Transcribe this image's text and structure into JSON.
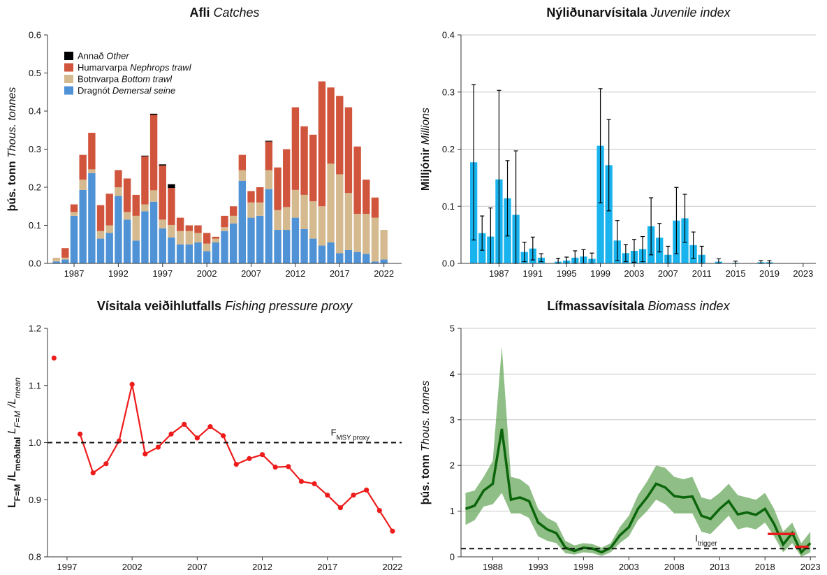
{
  "chart_data": [
    {
      "type": "stacked_bar",
      "title": [
        "Afli",
        "Catches"
      ],
      "ylabel": [
        "þús. tonn",
        "Thous. tonnes"
      ],
      "x": [
        1985,
        1986,
        1987,
        1988,
        1989,
        1990,
        1991,
        1992,
        1993,
        1994,
        1995,
        1996,
        1997,
        1998,
        1999,
        2000,
        2001,
        2002,
        2003,
        2004,
        2005,
        2006,
        2007,
        2008,
        2009,
        2010,
        2011,
        2012,
        2013,
        2014,
        2015,
        2016,
        2017,
        2018,
        2019,
        2020,
        2021,
        2022
      ],
      "series": [
        {
          "name": [
            "Dragnót",
            "Demersal seine"
          ],
          "color": "#4f93d6",
          "values": [
            0.005,
            0.01,
            0.125,
            0.193,
            0.237,
            0.065,
            0.08,
            0.177,
            0.115,
            0.06,
            0.137,
            0.162,
            0.092,
            0.068,
            0.05,
            0.05,
            0.055,
            0.032,
            0.055,
            0.085,
            0.105,
            0.217,
            0.12,
            0.125,
            0.195,
            0.088,
            0.088,
            0.12,
            0.09,
            0.065,
            0.047,
            0.055,
            0.027,
            0.035,
            0.03,
            0.025,
            0.005,
            0.01
          ]
        },
        {
          "name": [
            "Botnvarpa",
            "Bottom trawl"
          ],
          "color": "#d5b98f",
          "values": [
            0.01,
            0.005,
            0.01,
            0.027,
            0.01,
            0.02,
            0.02,
            0.023,
            0.02,
            0.065,
            0.018,
            0.03,
            0.023,
            0.033,
            0.035,
            0.035,
            0.025,
            0.02,
            0.01,
            0.01,
            0.02,
            0.028,
            0.04,
            0.035,
            0.05,
            0.052,
            0.06,
            0.073,
            0.09,
            0.098,
            0.103,
            0.207,
            0.207,
            0.15,
            0.1,
            0.105,
            0.115,
            0.078
          ]
        },
        {
          "name": [
            "Humarvarpa",
            "Nephrops trawl"
          ],
          "color": "#d0553c",
          "values": [
            0,
            0.025,
            0.02,
            0.065,
            0.096,
            0.068,
            0.083,
            0.045,
            0.088,
            0.055,
            0.126,
            0.198,
            0.142,
            0.097,
            0.035,
            0.015,
            0.02,
            0.028,
            0.005,
            0.03,
            0.025,
            0.04,
            0.03,
            0.04,
            0.075,
            0.112,
            0.152,
            0.217,
            0.18,
            0.175,
            0.328,
            0.2,
            0.206,
            0.225,
            0.177,
            0.09,
            0.053,
            0
          ]
        },
        {
          "name": [
            "Annað",
            "Other"
          ],
          "color": "#000000",
          "values": [
            0,
            0,
            0,
            0,
            0,
            0,
            0,
            0,
            0,
            0,
            0.002,
            0.003,
            0.003,
            0.01,
            0,
            0,
            0,
            0,
            0,
            0,
            0,
            0,
            0,
            0,
            0.002,
            0,
            0,
            0,
            0,
            0,
            0,
            0,
            0,
            0,
            0,
            0,
            0,
            0
          ]
        }
      ],
      "xlim": [
        1984,
        2024
      ],
      "xticks": [
        1987,
        1992,
        1997,
        2002,
        2007,
        2012,
        2017,
        2022
      ],
      "ylim": [
        0,
        0.6
      ],
      "yticks": [
        {
          "value": 0,
          "label": "0.0"
        },
        0.1,
        0.2,
        0.3,
        0.4,
        0.5,
        0.6
      ],
      "grid": false,
      "legend": "top-left"
    },
    {
      "type": "bar",
      "title": [
        "Nýliðunarvísitala",
        "Juvenile index"
      ],
      "ylabel": [
        "Milljónir",
        "Millions"
      ],
      "color": "#19b4ee",
      "x": [
        1984,
        1985,
        1986,
        1987,
        1988,
        1989,
        1990,
        1991,
        1992,
        1993,
        1994,
        1995,
        1996,
        1997,
        1998,
        1999,
        2000,
        2001,
        2002,
        2003,
        2004,
        2005,
        2006,
        2007,
        2008,
        2009,
        2010,
        2011,
        2012,
        2013,
        2014,
        2015,
        2016,
        2017,
        2018,
        2019,
        2020,
        2021,
        2022
      ],
      "values": [
        0.177,
        0.053,
        0.047,
        0.147,
        0.114,
        0.085,
        0.02,
        0.026,
        0.01,
        0,
        0.003,
        0.005,
        0.01,
        0.012,
        0.008,
        0.206,
        0.172,
        0.04,
        0.018,
        0.022,
        0.025,
        0.065,
        0.045,
        0.015,
        0.075,
        0.079,
        0.032,
        0.015,
        0,
        0.003,
        0,
        0.001,
        0,
        0,
        0.002,
        0.002,
        0,
        0,
        0
      ],
      "errors": [
        0.136,
        0.03,
        0.05,
        0.156,
        0.066,
        0.112,
        0.017,
        0.02,
        0.007,
        0,
        0.006,
        0.006,
        0.012,
        0.012,
        0.01,
        0.1,
        0.08,
        0.035,
        0.015,
        0.02,
        0.022,
        0.05,
        0.025,
        0.015,
        0.058,
        0.042,
        0.023,
        0.015,
        0,
        0.005,
        0,
        0.003,
        0,
        0,
        0.003,
        0.003,
        0,
        0,
        0
      ],
      "xlim": [
        1982.5,
        2024.5
      ],
      "xticks": [
        1987,
        1991,
        1995,
        1999,
        2003,
        2007,
        2011,
        2015,
        2019,
        2023
      ],
      "ylim": [
        0,
        0.4
      ],
      "yticks": [
        {
          "value": 0,
          "label": "0.0"
        },
        0.1,
        0.2,
        0.3,
        0.4
      ],
      "grid": true
    },
    {
      "type": "line",
      "title": [
        "Vísitala veiðihlutfalls",
        "Fishing pressure proxy"
      ],
      "ylabel": [
        {
          "text": "L",
          "sub": "F=M"
        },
        {
          "text": "/L",
          "sub": "meðaltal"
        },
        {
          "text": "L",
          "sub": "F=M"
        },
        {
          "text": "/L",
          "sub": "mean"
        }
      ],
      "color": "#ee1b1b",
      "x": [
        1996,
        1997,
        1998,
        1999,
        2000,
        2001,
        2002,
        2003,
        2004,
        2005,
        2006,
        2007,
        2008,
        2009,
        2010,
        2011,
        2012,
        2013,
        2014,
        2015,
        2016,
        2017,
        2018,
        2019,
        2020,
        2021,
        2022
      ],
      "values": [
        1.148,
        null,
        1.015,
        0.947,
        0.963,
        1.003,
        1.102,
        0.98,
        0.992,
        1.015,
        1.032,
        1.008,
        1.028,
        1.012,
        0.962,
        0.972,
        0.979,
        0.957,
        0.958,
        0.932,
        0.928,
        0.908,
        0.886,
        0.908,
        0.917,
        0.881,
        0.845
      ],
      "hline": {
        "value": 1,
        "label": {
          "text": "F",
          "sub": "MSY proxy"
        }
      },
      "xlim": [
        1995.5,
        2022.7
      ],
      "xticks": [
        1997,
        2002,
        2007,
        2012,
        2017,
        2022
      ],
      "ylim": [
        0.8,
        1.2
      ],
      "yticks": [
        0.8,
        0.9,
        {
          "value": 1,
          "label": "1.0"
        },
        1.1,
        1.2
      ],
      "grid": false
    },
    {
      "type": "band_line",
      "title": [
        "Lífmassavísitala",
        "Biomass index"
      ],
      "ylabel": [
        "þús. tonn",
        "Thous. tonnes"
      ],
      "color": "#0b650b",
      "band_color": "#5fa352",
      "advice_color": "#e61b1b",
      "x": [
        1985,
        1986,
        1987,
        1988,
        1989,
        1990,
        1991,
        1992,
        1993,
        1994,
        1995,
        1996,
        1997,
        1998,
        1999,
        2000,
        2001,
        2002,
        2003,
        2004,
        2005,
        2006,
        2007,
        2008,
        2009,
        2010,
        2011,
        2012,
        2013,
        2014,
        2015,
        2016,
        2017,
        2018,
        2019,
        2020,
        2021,
        2022,
        2023
      ],
      "values": [
        1.05,
        1.12,
        1.45,
        1.6,
        2.8,
        1.25,
        1.3,
        1.22,
        0.75,
        0.6,
        0.52,
        0.2,
        0.13,
        0.2,
        0.18,
        0.1,
        0.2,
        0.47,
        0.65,
        1.05,
        1.3,
        1.6,
        1.52,
        1.33,
        1.3,
        1.32,
        0.9,
        0.83,
        1.05,
        1.22,
        0.93,
        0.97,
        0.92,
        1.05,
        0.72,
        0.27,
        0.52,
        0.1,
        0.3
      ],
      "upper": [
        1.4,
        1.45,
        1.75,
        2.1,
        4.6,
        1.75,
        1.7,
        1.55,
        1.05,
        0.85,
        0.75,
        0.35,
        0.25,
        0.3,
        0.28,
        0.2,
        0.3,
        0.65,
        0.9,
        1.35,
        1.65,
        2.0,
        1.95,
        1.75,
        1.7,
        1.75,
        1.3,
        1.25,
        1.4,
        1.6,
        1.35,
        1.3,
        1.25,
        1.4,
        1.05,
        0.55,
        0.75,
        0.3,
        0.55
      ],
      "lower": [
        0.7,
        0.8,
        1.1,
        1.15,
        1.4,
        0.95,
        0.95,
        0.85,
        0.45,
        0.35,
        0.3,
        0.08,
        0.05,
        0.1,
        0.08,
        0.02,
        0.1,
        0.3,
        0.45,
        0.8,
        1.0,
        1.25,
        1.15,
        0.95,
        0.95,
        0.95,
        0.55,
        0.5,
        0.7,
        0.9,
        0.6,
        0.65,
        0.6,
        0.75,
        0.45,
        0.1,
        0.3,
        0.0,
        0.1
      ],
      "advice": [
        {
          "start": 2018.3,
          "end": 2021.3,
          "value": 0.5
        },
        {
          "start": 2021.3,
          "end": 2022.8,
          "value": 0.22
        }
      ],
      "hline": {
        "value": 0.18,
        "label": {
          "text": "I",
          "sub": "trigger"
        }
      },
      "xlim": [
        1984.5,
        2023.6
      ],
      "xticks": [
        1988,
        1993,
        1998,
        2003,
        2008,
        2013,
        2018,
        2023
      ],
      "ylim": [
        0,
        5
      ],
      "yticks": [
        0,
        1,
        2,
        3,
        4,
        5
      ],
      "grid": true
    }
  ]
}
